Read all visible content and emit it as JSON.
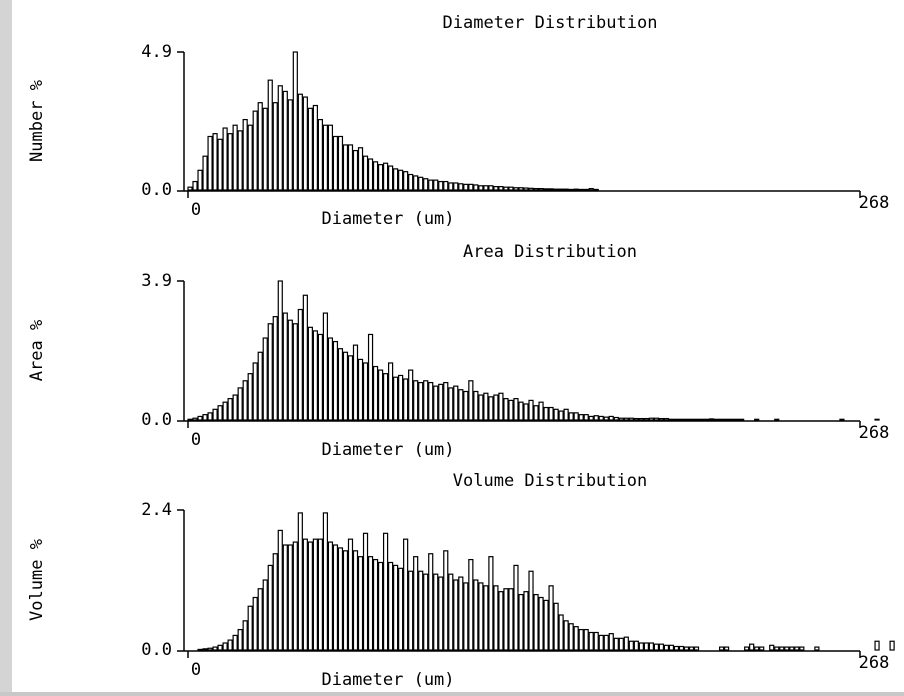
{
  "chart_data": [
    {
      "type": "bar",
      "title": "Diameter Distribution",
      "xlabel": "Diameter (um)",
      "ylabel": "Number %",
      "xlim": [
        0,
        268
      ],
      "ylim": [
        0.0,
        4.9
      ],
      "ytick_labels": [
        "0.0",
        "4.9"
      ],
      "xtick_labels": [
        "0",
        "268"
      ],
      "bin_width_um": 2,
      "values": [
        0.1,
        0.3,
        0.7,
        1.2,
        1.9,
        2.0,
        1.8,
        2.2,
        2.0,
        2.3,
        2.1,
        2.5,
        2.3,
        2.8,
        3.1,
        2.9,
        3.9,
        3.1,
        3.7,
        3.5,
        3.2,
        4.9,
        3.4,
        3.3,
        2.9,
        3.0,
        2.5,
        2.3,
        2.3,
        1.9,
        1.9,
        1.6,
        1.6,
        1.4,
        1.5,
        1.2,
        1.1,
        1.0,
        0.9,
        0.95,
        0.85,
        0.75,
        0.7,
        0.65,
        0.55,
        0.5,
        0.45,
        0.4,
        0.35,
        0.35,
        0.3,
        0.3,
        0.25,
        0.25,
        0.22,
        0.2,
        0.2,
        0.18,
        0.15,
        0.15,
        0.15,
        0.12,
        0.12,
        0.1,
        0.1,
        0.08,
        0.08,
        0.07,
        0.06,
        0.05,
        0.05,
        0.04,
        0.04,
        0.03,
        0.03,
        0.03,
        0.02,
        0.03,
        0.02,
        0.02,
        0.05,
        0.02
      ]
    },
    {
      "type": "bar",
      "title": "Area Distribution",
      "xlabel": "Diameter (um)",
      "ylabel": "Area %",
      "xlim": [
        0,
        268
      ],
      "ylim": [
        0.0,
        3.9
      ],
      "ytick_labels": [
        "0.0",
        "3.9"
      ],
      "xtick_labels": [
        "0",
        "268"
      ],
      "bin_width_um": 2,
      "values": [
        0.02,
        0.05,
        0.1,
        0.15,
        0.2,
        0.3,
        0.4,
        0.5,
        0.6,
        0.7,
        0.9,
        1.1,
        1.3,
        1.6,
        1.9,
        2.3,
        2.7,
        2.9,
        3.9,
        3.0,
        2.8,
        2.7,
        3.1,
        3.5,
        2.6,
        2.5,
        2.4,
        3.0,
        2.3,
        2.2,
        2.0,
        1.9,
        1.8,
        2.1,
        1.7,
        1.6,
        2.4,
        1.5,
        1.4,
        1.3,
        1.6,
        1.2,
        1.25,
        1.15,
        1.4,
        1.1,
        1.05,
        1.1,
        1.05,
        0.95,
        1.0,
        1.05,
        0.9,
        0.95,
        0.85,
        0.8,
        1.1,
        0.8,
        0.7,
        0.75,
        0.65,
        0.7,
        0.75,
        0.6,
        0.55,
        0.6,
        0.5,
        0.45,
        0.55,
        0.4,
        0.5,
        0.35,
        0.35,
        0.3,
        0.25,
        0.3,
        0.2,
        0.2,
        0.15,
        0.15,
        0.1,
        0.12,
        0.1,
        0.08,
        0.1,
        0.07,
        0.05,
        0.05,
        0.05,
        0.04,
        0.04,
        0.04,
        0.05,
        0.05,
        0.04,
        0.04,
        0.02,
        0.02,
        0.02,
        0.02,
        0.02,
        0.02,
        0.02,
        0.02,
        0.03,
        0.02,
        0.02,
        0.02,
        0.02,
        0.02,
        0.02,
        0.0,
        0.0,
        0.02,
        0.0,
        0.0,
        0.0,
        0.02,
        0.0,
        0.0,
        0.0,
        0.0,
        0.0,
        0.0,
        0.0,
        0.0,
        0.0,
        0.0,
        0.0,
        0.0,
        0.02,
        0.0,
        0.0,
        0.0,
        0.0,
        0.0,
        0.0,
        0.02,
        0.0,
        0.0,
        0.0,
        0.0,
        0.0,
        0.02,
        0.02,
        0.0,
        0.0,
        0.0,
        0.0,
        0.0,
        0.0,
        0.0,
        0.0,
        0.0,
        0.0,
        0.0,
        0.0,
        0.0,
        0.0,
        0.0,
        0.0,
        0.0,
        0.0,
        0.0,
        0.0,
        0.0,
        0.02,
        0.02,
        0.02,
        0.02
      ]
    },
    {
      "type": "bar",
      "title": "Volume Distribution",
      "xlabel": "Diameter (um)",
      "ylabel": "Volume %",
      "xlim": [
        0,
        268
      ],
      "ylim": [
        0.0,
        2.4
      ],
      "ytick_labels": [
        "0.0",
        "2.4"
      ],
      "xtick_labels": [
        "0",
        "268"
      ],
      "bin_width_um": 2,
      "values": [
        0.0,
        0.0,
        0.01,
        0.02,
        0.03,
        0.05,
        0.08,
        0.12,
        0.17,
        0.25,
        0.35,
        0.5,
        0.75,
        0.9,
        1.05,
        1.2,
        1.45,
        1.65,
        2.05,
        1.8,
        1.8,
        1.85,
        2.35,
        1.9,
        1.85,
        1.9,
        1.9,
        2.35,
        1.85,
        1.8,
        1.75,
        1.7,
        1.9,
        1.7,
        1.6,
        2.0,
        1.6,
        1.55,
        1.5,
        2.0,
        1.5,
        1.45,
        1.4,
        1.9,
        1.35,
        1.6,
        1.35,
        1.3,
        1.65,
        1.3,
        1.25,
        1.7,
        1.3,
        1.2,
        1.25,
        1.15,
        1.55,
        1.2,
        1.15,
        1.1,
        1.6,
        1.1,
        1.0,
        1.05,
        1.05,
        1.45,
        0.95,
        1.0,
        1.35,
        0.95,
        0.9,
        0.85,
        1.1,
        0.8,
        0.6,
        0.5,
        0.45,
        0.4,
        0.35,
        0.35,
        0.3,
        0.3,
        0.25,
        0.25,
        0.28,
        0.2,
        0.2,
        0.22,
        0.15,
        0.15,
        0.12,
        0.12,
        0.12,
        0.1,
        0.1,
        0.08,
        0.08,
        0.06,
        0.06,
        0.05,
        0.05,
        0.05,
        0.0,
        0.0,
        0.0,
        0.0,
        0.05,
        0.05,
        0.0,
        0.0,
        0.0,
        0.05,
        0.1,
        0.05,
        0.05,
        0.0,
        0.08,
        0.05,
        0.05,
        0.05,
        0.05,
        0.05,
        0.05,
        0.0,
        0.0,
        0.05,
        0.0,
        0.0,
        0.0,
        0.0,
        0.0,
        0.0,
        0.0,
        0.0,
        0.0,
        0.0,
        0.0,
        0.15,
        0.0,
        0.0,
        0.15,
        0.0,
        0.0,
        0.0,
        0.2,
        0.15,
        0.0,
        0.0,
        0.0,
        0.0,
        0.0,
        0.0,
        0.0,
        0.1,
        0.1,
        0.0,
        0.0
      ]
    }
  ]
}
